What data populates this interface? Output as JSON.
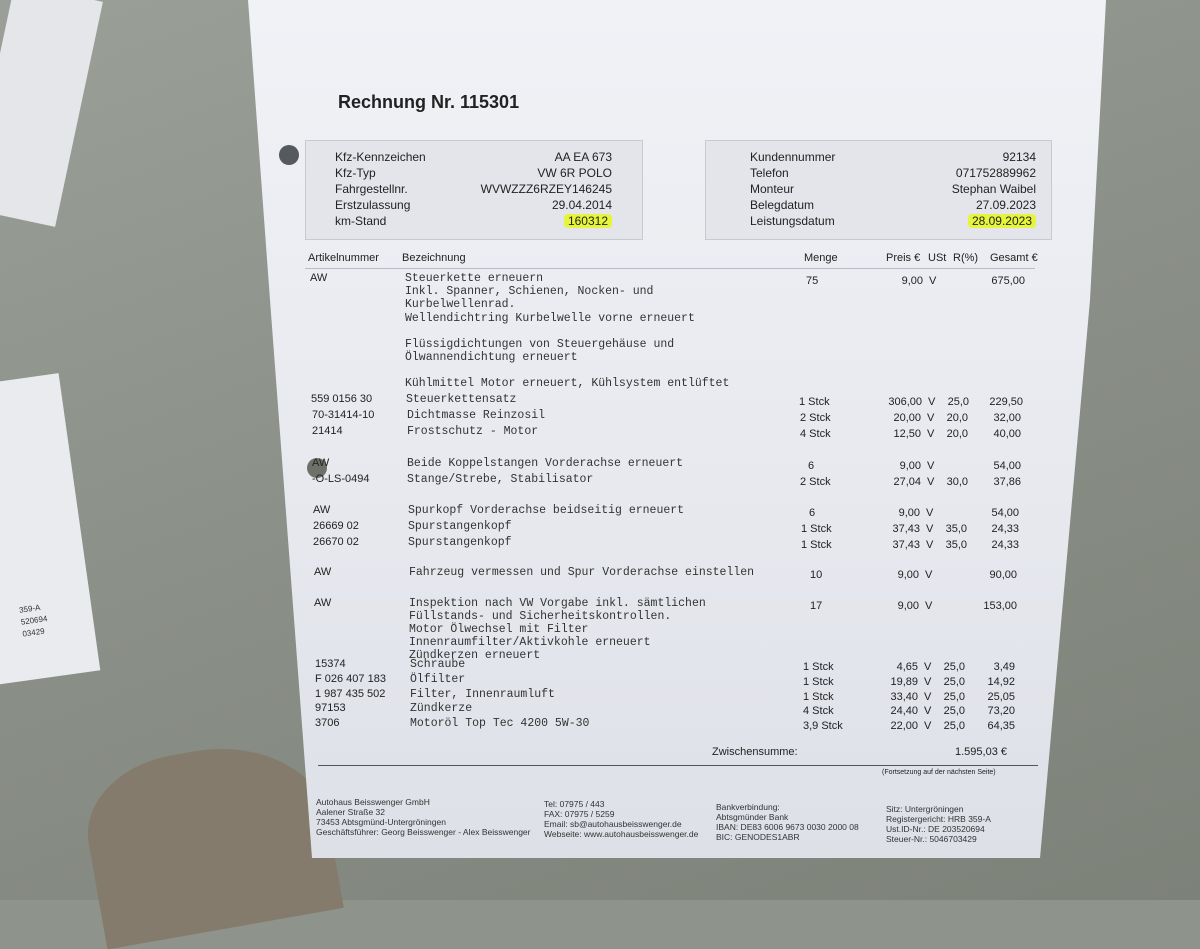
{
  "title": "Rechnung Nr. 115301",
  "vehicle": [
    {
      "label": "Kfz-Kennzeichen",
      "value": "AA EA 673"
    },
    {
      "label": "Kfz-Typ",
      "value": "VW 6R POLO"
    },
    {
      "label": "Fahrgestellnr.",
      "value": "WVWZZZ6RZEY146245"
    },
    {
      "label": "Erstzulassung",
      "value": "29.04.2014"
    },
    {
      "label": "km-Stand",
      "value": "160312",
      "highlighted": true
    }
  ],
  "customer": [
    {
      "label": "Kundennummer",
      "value": "92134"
    },
    {
      "label": "Telefon",
      "value": "071752889962"
    },
    {
      "label": "Monteur",
      "value": "Stephan Waibel"
    },
    {
      "label": "Belegdatum",
      "value": "27.09.2023"
    },
    {
      "label": "Leistungsdatum",
      "value": "28.09.2023",
      "highlighted": true
    }
  ],
  "highlight_color": "#e6f53c",
  "columns": {
    "art": "Artikelnummer",
    "desc": "Bezeichnung",
    "menge": "Menge",
    "preis": "Preis €",
    "ust": "USt",
    "rabatt": "R(%)",
    "gesamt": "Gesamt €"
  },
  "items": [
    {
      "art": "AW",
      "lines": [
        "Steuerkette erneuern",
        "Inkl. Spanner, Schienen, Nocken- und",
        "Kurbelwellenrad.",
        "Wellendichtring Kurbelwelle vorne erneuert",
        "",
        "Flüssigdichtungen von Steuergehäuse und",
        "Ölwannendichtung erneuert",
        "",
        "Kühlmittel Motor erneuert, Kühlsystem entlüftet"
      ],
      "menge": "75",
      "preis": "9,00",
      "ust": "V",
      "rabatt": "",
      "gesamt": "675,00"
    },
    {
      "art": "559 0156 30",
      "lines": [
        "Steuerkettensatz"
      ],
      "menge": "1 Stck",
      "preis": "306,00",
      "ust": "V",
      "rabatt": "25,0",
      "gesamt": "229,50"
    },
    {
      "art": "70-31414-10",
      "lines": [
        "Dichtmasse Reinzosil"
      ],
      "menge": "2 Stck",
      "preis": "20,00",
      "ust": "V",
      "rabatt": "20,0",
      "gesamt": "32,00"
    },
    {
      "art": "21414",
      "lines": [
        "Frostschutz - Motor"
      ],
      "menge": "4 Stck",
      "preis": "12,50",
      "ust": "V",
      "rabatt": "20,0",
      "gesamt": "40,00"
    },
    {
      "art": "AW",
      "lines": [
        "Beide Koppelstangen Vorderachse erneuert"
      ],
      "menge": "6",
      "preis": "9,00",
      "ust": "V",
      "rabatt": "",
      "gesamt": "54,00"
    },
    {
      "art": "-O-LS-0494",
      "lines": [
        "Stange/Strebe, Stabilisator"
      ],
      "menge": "2 Stck",
      "preis": "27,04",
      "ust": "V",
      "rabatt": "30,0",
      "gesamt": "37,86"
    },
    {
      "art": "AW",
      "lines": [
        "Spurkopf Vorderachse beidseitig erneuert"
      ],
      "menge": "6",
      "preis": "9,00",
      "ust": "V",
      "rabatt": "",
      "gesamt": "54,00"
    },
    {
      "art": "26669 02",
      "lines": [
        "Spurstangenkopf"
      ],
      "menge": "1 Stck",
      "preis": "37,43",
      "ust": "V",
      "rabatt": "35,0",
      "gesamt": "24,33"
    },
    {
      "art": "26670 02",
      "lines": [
        "Spurstangenkopf"
      ],
      "menge": "1 Stck",
      "preis": "37,43",
      "ust": "V",
      "rabatt": "35,0",
      "gesamt": "24,33"
    },
    {
      "art": "AW",
      "lines": [
        "Fahrzeug vermessen und Spur Vorderachse einstellen"
      ],
      "menge": "10",
      "preis": "9,00",
      "ust": "V",
      "rabatt": "",
      "gesamt": "90,00"
    },
    {
      "art": "AW",
      "lines": [
        "Inspektion nach VW Vorgabe inkl. sämtlichen",
        "Füllstands- und Sicherheitskontrollen.",
        "Motor Ölwechsel mit Filter",
        "Innenraumfilter/Aktivkohle erneuert",
        "Zündkerzen erneuert"
      ],
      "menge": "17",
      "preis": "9,00",
      "ust": "V",
      "rabatt": "",
      "gesamt": "153,00"
    },
    {
      "art": "15374",
      "lines": [
        "Schraube"
      ],
      "menge": "1 Stck",
      "preis": "4,65",
      "ust": "V",
      "rabatt": "25,0",
      "gesamt": "3,49"
    },
    {
      "art": "F 026 407 183",
      "lines": [
        "Ölfilter"
      ],
      "menge": "1 Stck",
      "preis": "19,89",
      "ust": "V",
      "rabatt": "25,0",
      "gesamt": "14,92"
    },
    {
      "art": "1 987 435 502",
      "lines": [
        "Filter, Innenraumluft"
      ],
      "menge": "1 Stck",
      "preis": "33,40",
      "ust": "V",
      "rabatt": "25,0",
      "gesamt": "25,05"
    },
    {
      "art": "97153",
      "lines": [
        "Zündkerze"
      ],
      "menge": "4 Stck",
      "preis": "24,40",
      "ust": "V",
      "rabatt": "25,0",
      "gesamt": "73,20"
    },
    {
      "art": "3706",
      "lines": [
        "Motoröl Top Tec 4200 5W-30"
      ],
      "menge": "3,9 Stck",
      "preis": "22,00",
      "ust": "V",
      "rabatt": "25,0",
      "gesamt": "64,35"
    }
  ],
  "subtotal": {
    "label": "Zwischensumme:",
    "value": "1.595,03 €"
  },
  "continuation": "(Fortsetzung auf der nächsten Seite)",
  "footer": {
    "company": [
      "Autohaus Beisswenger GmbH",
      "Aalener Straße 32",
      "73453 Abtsgmünd-Untergröningen",
      "Geschäftsführer: Georg Beisswenger - Alex Beisswenger"
    ],
    "contact": [
      "Tel: 07975 / 443",
      "FAX: 07975 / 5259",
      "Email: sb@autohausbeisswenger.de",
      "Webseite: www.autohausbeisswenger.de"
    ],
    "bank": [
      "Bankverbindung:",
      "Abtsgmünder Bank",
      "IBAN: DE83 6006 9673 0030 2000 08",
      "BIC: GENODES1ABR"
    ],
    "legal": [
      "Sitz: Untergröningen",
      "Registergericht: HRB 359-A",
      "Ust.ID-Nr.: DE 203520694",
      "Steuer-Nr.: 5046703429"
    ]
  },
  "left_fragment": [
    "359-A",
    "520694",
    "03429"
  ]
}
